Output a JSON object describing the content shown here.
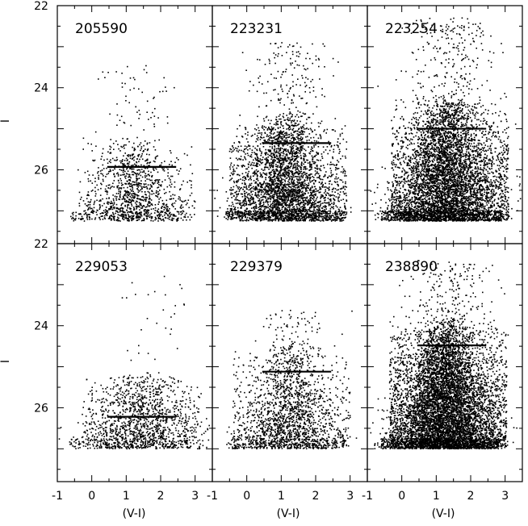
{
  "chart_data": {
    "type": "scatter",
    "description_kind": "color-magnitude diagrams",
    "xlabel": "(V-I)",
    "ylabel": "I",
    "xlim": [
      -1,
      3.5
    ],
    "ylim": [
      27.8,
      22
    ],
    "y_inverted": true,
    "xticks": [
      -1,
      0,
      1,
      2,
      3
    ],
    "yticks": [
      22,
      24,
      26
    ],
    "x_tick_labels": [
      "-1",
      "0",
      "1",
      "2",
      "3"
    ],
    "y_tick_labels": [
      "22",
      "24",
      "26"
    ],
    "panels": [
      {
        "label": "205590",
        "tip_line": {
          "x": [
            0.45,
            2.45
          ],
          "y": 25.93
        },
        "rgb_color_center": 1.2,
        "rgb_spread": 0.5,
        "rgb_bright_limit": 25.2,
        "agb_top": 23.4,
        "faint_limit": 27.25,
        "num_points": 1100,
        "agb_points": 80
      },
      {
        "label": "223231",
        "tip_line": {
          "x": [
            0.45,
            2.45
          ],
          "y": 25.35
        },
        "rgb_color_center": 1.1,
        "rgb_spread": 0.55,
        "rgb_bright_limit": 24.6,
        "agb_top": 22.9,
        "faint_limit": 27.25,
        "num_points": 3200,
        "agb_points": 220
      },
      {
        "label": "223254",
        "tip_line": {
          "x": [
            0.45,
            2.45
          ],
          "y": 25.0
        },
        "rgb_color_center": 1.3,
        "rgb_spread": 0.6,
        "rgb_bright_limit": 24.2,
        "agb_top": 22.3,
        "faint_limit": 27.25,
        "num_points": 5200,
        "agb_points": 330
      },
      {
        "label": "229053",
        "tip_line": {
          "x": [
            0.45,
            2.45
          ],
          "y": 26.22
        },
        "rgb_color_center": 1.4,
        "rgb_spread": 0.7,
        "rgb_bright_limit": 25.1,
        "agb_top": 22.6,
        "faint_limit": 27.0,
        "num_points": 1300,
        "agb_points": 40
      },
      {
        "label": "229379",
        "tip_line": {
          "x": [
            0.45,
            2.45
          ],
          "y": 25.12
        },
        "rgb_color_center": 1.2,
        "rgb_spread": 0.55,
        "rgb_bright_limit": 24.4,
        "agb_top": 23.6,
        "faint_limit": 27.0,
        "num_points": 1700,
        "agb_points": 120
      },
      {
        "label": "238890",
        "tip_line": {
          "x": [
            0.45,
            2.45
          ],
          "y": 24.48
        },
        "rgb_color_center": 1.25,
        "rgb_spread": 0.55,
        "rgb_bright_limit": 23.8,
        "agb_top": 22.4,
        "faint_limit": 27.0,
        "num_points": 7000,
        "agb_points": 260
      }
    ],
    "point_color": "#000000",
    "line_color": "#000000"
  }
}
